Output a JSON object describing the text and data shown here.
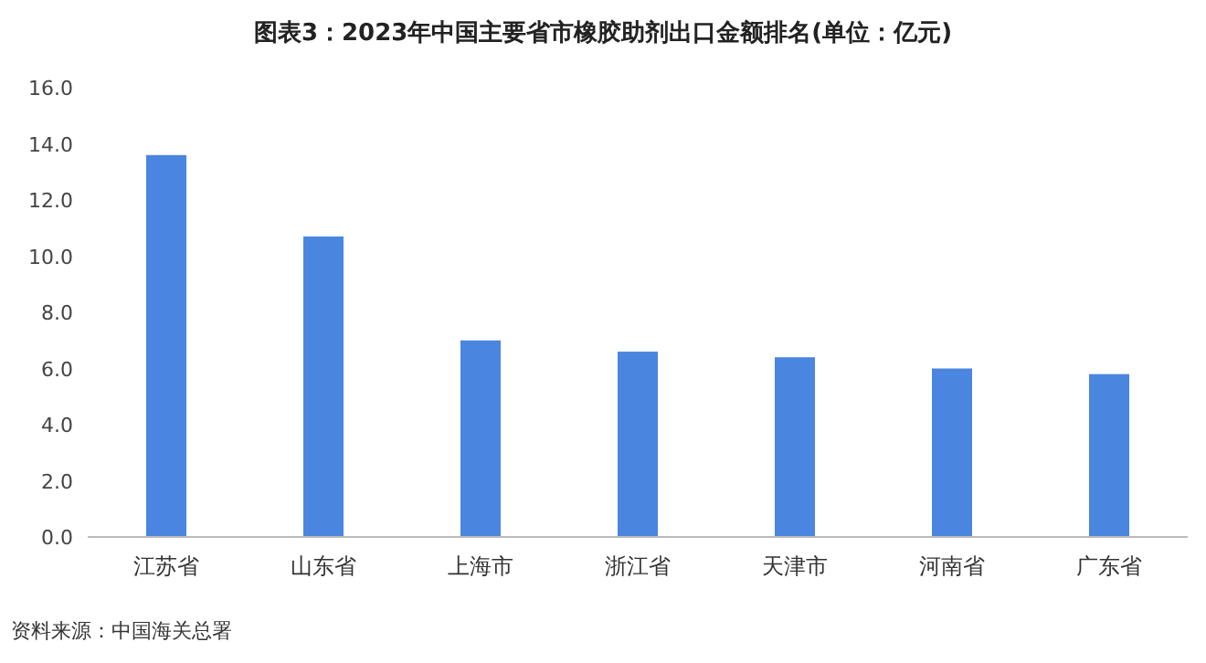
{
  "chart_data": {
    "type": "bar",
    "title": "图表3：2023年中国主要省市橡胶助剂出口金额排名(单位：亿元)",
    "categories": [
      "江苏省",
      "山东省",
      "上海市",
      "浙江省",
      "天津市",
      "河南省",
      "广东省"
    ],
    "values": [
      13.6,
      10.7,
      7.0,
      6.6,
      6.4,
      6.0,
      5.8
    ],
    "color": "#4a86e0",
    "ylim": [
      0,
      16
    ],
    "yticks": [
      {
        "value": 0,
        "label": "0.0"
      },
      {
        "value": 2,
        "label": "2.0"
      },
      {
        "value": 4,
        "label": "4.0"
      },
      {
        "value": 6,
        "label": "6.0"
      },
      {
        "value": 8,
        "label": "8.0"
      },
      {
        "value": 10,
        "label": "10.0"
      },
      {
        "value": 12,
        "label": "12.0"
      },
      {
        "value": 14,
        "label": "14.0"
      },
      {
        "value": 16,
        "label": "16.0"
      }
    ],
    "grid": false,
    "annotations": [
      "资料来源：中国海关总署"
    ]
  }
}
